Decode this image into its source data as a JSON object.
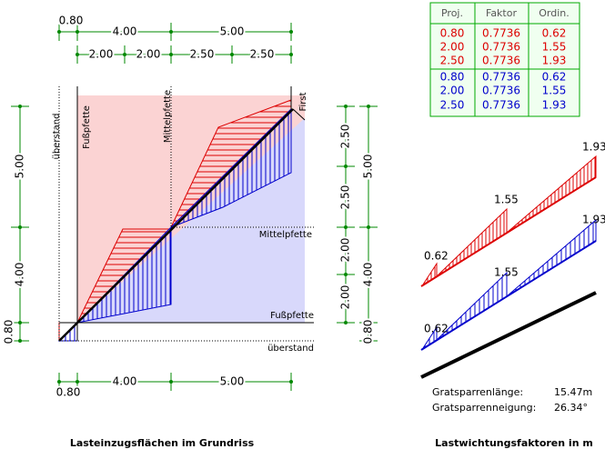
{
  "plan": {
    "dims_top_row1": [
      "0.80",
      "4.00",
      "5.00"
    ],
    "dims_top_row2": [
      "2.00",
      "2.00",
      "2.50",
      "2.50"
    ],
    "dims_left": [
      "5.00",
      "4.00",
      "0.80"
    ],
    "dims_right_inner": [
      "2.50",
      "2.50",
      "2.00",
      "2.00"
    ],
    "dims_right_outer": [
      "5.00",
      "4.00",
      "0.80"
    ],
    "dims_bottom": [
      "4.00",
      "5.00",
      "0.80"
    ],
    "labels": {
      "overhang_vertical": "überstand",
      "eaves_vertical": "Fußpfette",
      "middle_vertical": "Mittelpfette",
      "ridge": "First",
      "middle_horizontal": "Mittelpfette",
      "eaves_horizontal": "Fußpfette",
      "overhang_horizontal": "überstand"
    },
    "caption": "Lasteinzugsflächen im Grundriss"
  },
  "table": {
    "header": [
      "Proj.",
      "Faktor",
      "Ordin."
    ],
    "rows": [
      [
        "0.80",
        "0.7736",
        "0.62"
      ],
      [
        "2.00",
        "0.7736",
        "1.55"
      ],
      [
        "2.50",
        "0.7736",
        "1.93"
      ],
      [
        "0.80",
        "0.7736",
        "0.62"
      ],
      [
        "2.00",
        "0.7736",
        "1.55"
      ],
      [
        "2.50",
        "0.7736",
        "1.93"
      ]
    ]
  },
  "weighting": {
    "red_labels": [
      "0.62",
      "1.55",
      "1.93"
    ],
    "blue_labels": [
      "0.62",
      "1.55",
      "1.93"
    ],
    "info": [
      [
        "Gratsparrenlänge:",
        "15.47m"
      ],
      [
        "Gratsparrenneigung:",
        "26.34°"
      ]
    ],
    "caption": "Lastwichtungsfaktoren in m"
  }
}
